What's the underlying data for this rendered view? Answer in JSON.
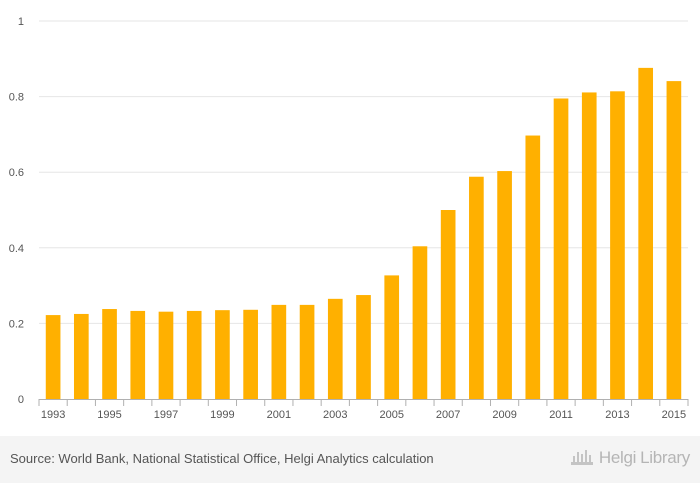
{
  "chart_data": {
    "type": "bar",
    "title": "",
    "xlabel": "",
    "ylabel": "",
    "categories": [
      "1993",
      "1994",
      "1995",
      "1996",
      "1997",
      "1998",
      "1999",
      "2000",
      "2001",
      "2002",
      "2003",
      "2004",
      "2005",
      "2006",
      "2007",
      "2008",
      "2009",
      "2010",
      "2011",
      "2012",
      "2013",
      "2014",
      "2015"
    ],
    "x_tick_labels": [
      "1993",
      "1995",
      "1997",
      "1999",
      "2001",
      "2003",
      "2005",
      "2007",
      "2009",
      "2011",
      "2013",
      "2015"
    ],
    "values": [
      0.222,
      0.225,
      0.238,
      0.233,
      0.231,
      0.233,
      0.235,
      0.236,
      0.249,
      0.249,
      0.265,
      0.275,
      0.327,
      0.404,
      0.5,
      0.588,
      0.603,
      0.697,
      0.795,
      0.811,
      0.814,
      0.876,
      0.841
    ],
    "y_ticks": [
      0,
      0.2,
      0.4,
      0.6,
      0.8,
      1
    ],
    "y_tick_labels": [
      "0",
      "0.2",
      "0.4",
      "0.6",
      "0.8",
      "1"
    ],
    "ylim": [
      0,
      1
    ],
    "grid": true,
    "bar_color": "#ffb000"
  },
  "footer": {
    "source": "Source: World Bank, National Statistical Office, Helgi Analytics calculation",
    "brand_part1": "Helgi",
    "brand_part2": "Library"
  },
  "icons": {
    "logo": "helgi-library-logo-icon"
  }
}
